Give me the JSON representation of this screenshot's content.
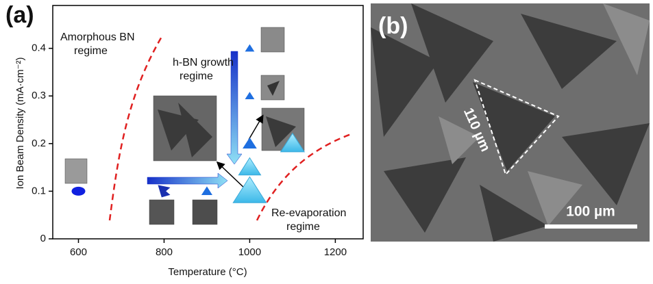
{
  "chart_data": {
    "type": "scatter",
    "panel_labels": [
      "(a)",
      "(b)"
    ],
    "xlabel": "Temperature (°C)",
    "ylabel": "Ion Beam Density (mA·cm⁻²)",
    "x": [
      600,
      800,
      900,
      1000,
      1000,
      1000,
      1100,
      1000,
      1000
    ],
    "values": [
      0.1,
      0.1,
      0.1,
      0.1,
      0.15,
      0.2,
      0.2,
      0.3,
      0.4
    ],
    "color": "#1f6fe0",
    "xlim": [
      540,
      1265
    ],
    "xticks": [
      600,
      800,
      1000,
      1200
    ],
    "ylim": [
      0,
      0.49
    ],
    "yticks": [
      0,
      0.1,
      0.2,
      0.3,
      0.4
    ],
    "annotations": [
      {
        "lines": [
          "Amorphous BN",
          "regime"
        ]
      },
      {
        "lines": [
          "h-BN growth",
          "regime"
        ]
      },
      {
        "lines": [
          "Re-evaporation",
          "regime"
        ]
      }
    ],
    "micrograph": {
      "measure": "110 µm",
      "scale_bar": "100 µm"
    }
  }
}
